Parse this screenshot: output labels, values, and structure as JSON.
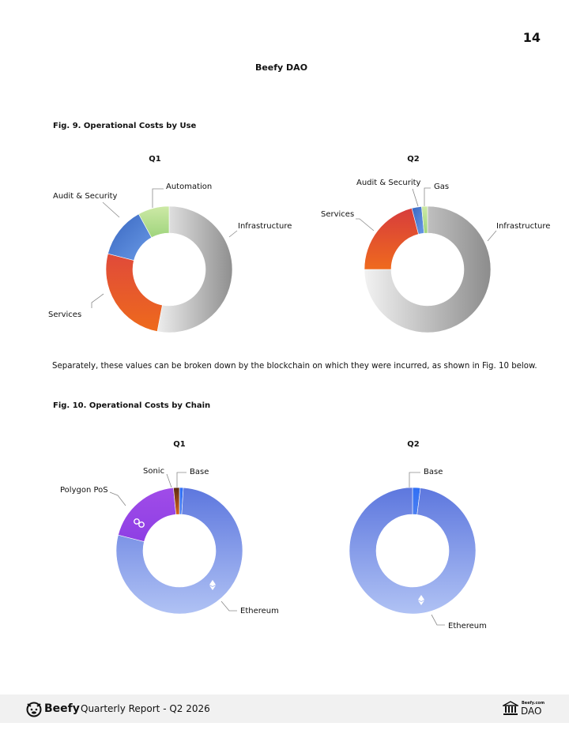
{
  "page": {
    "number": "14",
    "header_title": "Beefy DAO",
    "body_text": "Separately, these values can be broken down by the blockchain on which they were incurred, as shown in Fig. 10 below."
  },
  "fig9": {
    "title": "Fig. 9. Operational Costs by Use",
    "q1_title": "Q1",
    "q2_title": "Q2"
  },
  "fig10": {
    "title": "Fig. 10. Operational Costs by Chain",
    "q1_title": "Q1",
    "q2_title": "Q2"
  },
  "chart_data": [
    {
      "type": "pie",
      "title": "Q1",
      "donut": true,
      "categories": [
        "Infrastructure",
        "Services",
        "Audit & Security",
        "Automation"
      ],
      "values": [
        53,
        26,
        13,
        8
      ],
      "colors": [
        "#a9a9a9",
        "#e85f2a",
        "#3f72c9",
        "#b6e08e"
      ]
    },
    {
      "type": "pie",
      "title": "Q2",
      "donut": true,
      "categories": [
        "Infrastructure",
        "Services",
        "Audit & Security",
        "Gas"
      ],
      "values": [
        75,
        21,
        2.5,
        1.5
      ],
      "colors": [
        "#b4b4b4",
        "#d9452a",
        "#3e68c4",
        "#a6dc86"
      ]
    },
    {
      "type": "pie",
      "title": "Q1",
      "donut": true,
      "categories": [
        "Ethereum",
        "Polygon PoS",
        "Sonic",
        "Base"
      ],
      "values": [
        78,
        19.5,
        1.5,
        1
      ],
      "colors": [
        "#6b84e0",
        "#a148e8",
        "#8a4a12",
        "#3d6ff0"
      ]
    },
    {
      "type": "pie",
      "title": "Q2",
      "donut": true,
      "categories": [
        "Ethereum",
        "Base"
      ],
      "values": [
        98,
        2
      ],
      "colors": [
        "#6b84e0",
        "#2d6ef5"
      ]
    }
  ],
  "footer": {
    "brand": "Beefy",
    "report": "Quarterly Report - Q2 2026",
    "dao_small": "Beefy.com",
    "dao": "DAO"
  }
}
